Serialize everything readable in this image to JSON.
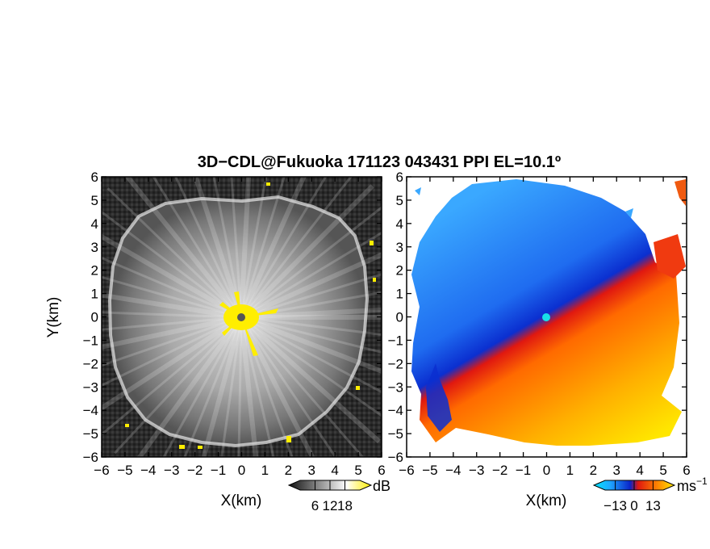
{
  "figure": {
    "title": "3D−CDL@Fukuoka 171123 043431 PPI EL=10.1º"
  },
  "chart_data": [
    {
      "type": "heatmap",
      "variable": "radar reflectivity (PPI)",
      "xlabel": "X(km)",
      "ylabel": "Y(km)",
      "xlim": [
        -6,
        6
      ],
      "ylim": [
        -6,
        6
      ],
      "xticks": [
        -6,
        -5,
        -4,
        -3,
        -2,
        -1,
        0,
        1,
        2,
        3,
        4,
        5,
        6
      ],
      "yticks": [
        -6,
        -5,
        -4,
        -3,
        -2,
        -1,
        0,
        1,
        2,
        3,
        4,
        5,
        6
      ],
      "tick_labels": [
        "−6",
        "−5",
        "−4",
        "−3",
        "−2",
        "−1",
        "0",
        "1",
        "2",
        "3",
        "4",
        "5",
        "6"
      ],
      "colorbar": {
        "unit": "dB",
        "ticks": [
          6,
          12,
          18
        ],
        "tick_labels": [
          "6",
          "12",
          "18"
        ],
        "range": [
          0,
          24
        ],
        "colors": [
          "#111111",
          "#ffffff",
          "#ffee00"
        ]
      },
      "features": {
        "radar_origin": [
          0,
          0
        ],
        "echo_edge_radius_km": 5.3,
        "high_values_near_origin_radius_km": 1.2
      }
    },
    {
      "type": "heatmap",
      "variable": "Doppler radial velocity (PPI)",
      "xlabel": "X(km)",
      "ylabel": "",
      "xlim": [
        -6,
        6
      ],
      "ylim": [
        -6,
        6
      ],
      "xticks": [
        -6,
        -5,
        -4,
        -3,
        -2,
        -1,
        0,
        1,
        2,
        3,
        4,
        5,
        6
      ],
      "yticks": [
        -6,
        -5,
        -4,
        -3,
        -2,
        -1,
        0,
        1,
        2,
        3,
        4,
        5,
        6
      ],
      "tick_labels": [
        "−6",
        "−5",
        "−4",
        "−3",
        "−2",
        "−1",
        "0",
        "1",
        "2",
        "3",
        "4",
        "5",
        "6"
      ],
      "colorbar": {
        "unit": "ms",
        "unit_exponent": "−1",
        "ticks": [
          -13,
          0,
          13
        ],
        "tick_labels": [
          "−13",
          "0",
          "13"
        ],
        "range": [
          -20,
          20
        ],
        "colors": [
          "#00e5ff",
          "#1a6bff",
          "#0a24c8",
          "#e01810",
          "#ff7a00",
          "#ffea00"
        ]
      },
      "features": {
        "zero_velocity_line_azimuth_deg": 30,
        "approaching_side": "northwest (negative, blue)",
        "receding_side": "southeast (positive, red-yellow)"
      }
    }
  ]
}
